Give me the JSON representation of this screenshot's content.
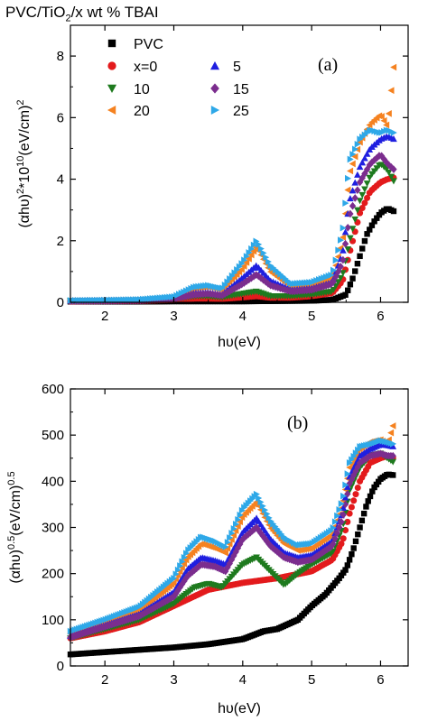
{
  "figure_title": {
    "main": "PVC/TiO",
    "sub": "2",
    "rest": "/x  wt % TBAI"
  },
  "chart_data": [
    {
      "type": "scatter",
      "panel_label": "(a)",
      "xlabel": "hυ(eV)",
      "ylabel": "(αhυ)²*10¹⁰(eV/cm)²",
      "xlim": [
        1.5,
        6.4
      ],
      "ylim": [
        0,
        9
      ],
      "xticks": [
        2,
        3,
        4,
        5,
        6
      ],
      "yticks": [
        0,
        2,
        4,
        6,
        8
      ],
      "legend_placement": "top-left",
      "series": [
        {
          "name": "PVC",
          "color": "#000000",
          "marker": "square",
          "x": [
            1.5,
            2.0,
            2.5,
            3.0,
            3.5,
            4.0,
            4.5,
            5.0,
            5.3,
            5.5,
            5.6,
            5.7,
            5.8,
            5.9,
            6.0,
            6.1,
            6.2
          ],
          "y": [
            0.02,
            0.02,
            0.02,
            0.03,
            0.03,
            0.03,
            0.04,
            0.05,
            0.08,
            0.25,
            0.8,
            1.5,
            2.2,
            2.6,
            2.9,
            3.05,
            2.95
          ]
        },
        {
          "name": "x=0",
          "color": "#e31a1c",
          "marker": "circle",
          "x": [
            1.5,
            2.0,
            2.5,
            3.0,
            3.3,
            3.5,
            3.7,
            4.0,
            4.2,
            4.4,
            4.7,
            5.0,
            5.3,
            5.45,
            5.55,
            5.7,
            5.85,
            6.0,
            6.1,
            6.2
          ],
          "y": [
            0.03,
            0.04,
            0.05,
            0.08,
            0.12,
            0.12,
            0.11,
            0.16,
            0.2,
            0.15,
            0.15,
            0.2,
            0.3,
            0.7,
            1.6,
            2.9,
            3.6,
            3.9,
            4.0,
            4.05
          ]
        },
        {
          "name": "10",
          "color": "#1e7a1e",
          "marker": "triangle-down",
          "x": [
            1.5,
            2.0,
            2.5,
            3.0,
            3.3,
            3.5,
            3.7,
            4.0,
            4.2,
            4.4,
            4.7,
            5.0,
            5.3,
            5.45,
            5.55,
            5.7,
            5.85,
            6.0,
            6.1,
            6.2
          ],
          "y": [
            0.04,
            0.05,
            0.06,
            0.1,
            0.2,
            0.2,
            0.16,
            0.28,
            0.35,
            0.2,
            0.2,
            0.25,
            0.35,
            0.9,
            2.0,
            3.3,
            4.1,
            4.5,
            4.3,
            3.9
          ]
        },
        {
          "name": "20",
          "color": "#f58220",
          "marker": "triangle-left",
          "x": [
            1.5,
            2.0,
            2.5,
            3.0,
            3.3,
            3.5,
            3.7,
            4.0,
            4.2,
            4.4,
            4.7,
            5.0,
            5.3,
            5.45,
            5.55,
            5.7,
            5.85,
            6.0,
            6.1,
            6.2
          ],
          "y": [
            0.05,
            0.06,
            0.08,
            0.15,
            0.45,
            0.5,
            0.4,
            1.1,
            1.8,
            1.0,
            0.5,
            0.55,
            0.8,
            2.0,
            4.2,
            5.2,
            5.8,
            6.1,
            5.7,
            7.85
          ]
        },
        {
          "name": "5",
          "color": "#1f1fe0",
          "marker": "triangle-up",
          "x": [
            1.5,
            2.0,
            2.5,
            3.0,
            3.3,
            3.5,
            3.7,
            4.0,
            4.2,
            4.4,
            4.7,
            5.0,
            5.3,
            5.45,
            5.55,
            5.7,
            5.85,
            6.0,
            6.1,
            6.2
          ],
          "y": [
            0.05,
            0.06,
            0.07,
            0.13,
            0.3,
            0.32,
            0.25,
            0.8,
            1.2,
            0.7,
            0.4,
            0.45,
            0.65,
            1.6,
            3.3,
            4.4,
            5.0,
            5.3,
            5.4,
            5.3
          ]
        },
        {
          "name": "15",
          "color": "#7b2d8e",
          "marker": "diamond",
          "x": [
            1.5,
            2.0,
            2.5,
            3.0,
            3.3,
            3.5,
            3.7,
            4.0,
            4.2,
            4.4,
            4.7,
            5.0,
            5.3,
            5.45,
            5.55,
            5.7,
            5.85,
            6.0,
            6.1,
            6.2
          ],
          "y": [
            0.04,
            0.05,
            0.06,
            0.12,
            0.25,
            0.28,
            0.22,
            0.6,
            0.9,
            0.55,
            0.35,
            0.4,
            0.6,
            1.3,
            2.8,
            3.9,
            4.5,
            4.8,
            4.5,
            4.3
          ]
        },
        {
          "name": "25",
          "color": "#2ea8e8",
          "marker": "triangle-right",
          "x": [
            1.5,
            2.0,
            2.5,
            3.0,
            3.3,
            3.5,
            3.7,
            4.0,
            4.2,
            4.4,
            4.7,
            5.0,
            5.3,
            5.45,
            5.55,
            5.7,
            5.85,
            6.0,
            6.1,
            6.2
          ],
          "y": [
            0.06,
            0.07,
            0.09,
            0.18,
            0.5,
            0.55,
            0.45,
            1.3,
            2.0,
            1.2,
            0.6,
            0.65,
            0.9,
            2.3,
            4.6,
            5.3,
            5.6,
            5.5,
            5.6,
            5.5
          ]
        }
      ]
    },
    {
      "type": "scatter",
      "panel_label": "(b)",
      "xlabel": "hυ(eV)",
      "ylabel": "(αhυ)⁰·⁵(eV/cm)⁰·⁵",
      "xlim": [
        1.5,
        6.4
      ],
      "ylim": [
        0,
        600
      ],
      "xticks": [
        2,
        3,
        4,
        5,
        6
      ],
      "yticks": [
        0,
        100,
        200,
        300,
        400,
        500,
        600
      ],
      "series": [
        {
          "name": "PVC",
          "color": "#000000",
          "marker": "square",
          "x": [
            1.5,
            2.0,
            2.5,
            3.0,
            3.5,
            4.0,
            4.3,
            4.5,
            4.8,
            5.0,
            5.2,
            5.4,
            5.5,
            5.6,
            5.7,
            5.8,
            5.9,
            6.0,
            6.1,
            6.2
          ],
          "y": [
            25,
            30,
            35,
            40,
            47,
            58,
            75,
            80,
            100,
            130,
            155,
            190,
            210,
            250,
            300,
            350,
            385,
            405,
            415,
            413
          ]
        },
        {
          "name": "x=0",
          "color": "#e31a1c",
          "marker": "circle",
          "x": [
            1.5,
            2.0,
            2.5,
            3.0,
            3.5,
            4.0,
            4.5,
            5.0,
            5.3,
            5.45,
            5.55,
            5.7,
            5.85,
            6.0,
            6.1,
            6.2
          ],
          "y": [
            60,
            75,
            95,
            130,
            165,
            180,
            190,
            205,
            230,
            270,
            330,
            400,
            440,
            450,
            455,
            450
          ]
        },
        {
          "name": "10",
          "color": "#1e7a1e",
          "marker": "triangle-down",
          "x": [
            1.5,
            2.0,
            2.5,
            3.0,
            3.3,
            3.5,
            3.7,
            4.0,
            4.2,
            4.4,
            4.6,
            4.8,
            5.0,
            5.3,
            5.45,
            5.55,
            5.7,
            5.85,
            6.0,
            6.1,
            6.2
          ],
          "y": [
            60,
            80,
            100,
            135,
            170,
            178,
            170,
            220,
            235,
            205,
            175,
            200,
            220,
            245,
            300,
            380,
            430,
            455,
            460,
            450,
            440
          ]
        },
        {
          "name": "20",
          "color": "#f58220",
          "marker": "triangle-left",
          "x": [
            1.5,
            2.0,
            2.5,
            3.0,
            3.2,
            3.4,
            3.6,
            3.75,
            4.0,
            4.2,
            4.4,
            4.6,
            4.8,
            5.0,
            5.3,
            5.45,
            5.55,
            5.7,
            5.85,
            6.0,
            6.1,
            6.2
          ],
          "y": [
            70,
            95,
            120,
            180,
            235,
            265,
            255,
            245,
            325,
            355,
            300,
            265,
            250,
            255,
            285,
            350,
            430,
            470,
            485,
            490,
            480,
            530
          ]
        },
        {
          "name": "5",
          "color": "#1f1fe0",
          "marker": "triangle-up",
          "x": [
            1.5,
            2.0,
            2.5,
            3.0,
            3.2,
            3.4,
            3.6,
            3.75,
            4.0,
            4.2,
            4.4,
            4.6,
            4.8,
            5.0,
            5.3,
            5.45,
            5.55,
            5.7,
            5.85,
            6.0,
            6.1,
            6.2
          ],
          "y": [
            65,
            88,
            112,
            160,
            210,
            235,
            228,
            220,
            290,
            320,
            275,
            245,
            235,
            240,
            270,
            335,
            410,
            455,
            470,
            480,
            478,
            475
          ]
        },
        {
          "name": "15",
          "color": "#7b2d8e",
          "marker": "diamond",
          "x": [
            1.5,
            2.0,
            2.5,
            3.0,
            3.2,
            3.4,
            3.6,
            3.75,
            4.0,
            4.2,
            4.4,
            4.6,
            4.8,
            5.0,
            5.3,
            5.45,
            5.55,
            5.7,
            5.85,
            6.0,
            6.1,
            6.2
          ],
          "y": [
            62,
            85,
            108,
            150,
            195,
            220,
            215,
            205,
            275,
            300,
            260,
            235,
            225,
            230,
            260,
            320,
            395,
            440,
            455,
            460,
            455,
            455
          ]
        },
        {
          "name": "25",
          "color": "#2ea8e8",
          "marker": "triangle-right",
          "x": [
            1.5,
            2.0,
            2.5,
            3.0,
            3.2,
            3.4,
            3.6,
            3.75,
            4.0,
            4.2,
            4.4,
            4.6,
            4.8,
            5.0,
            5.3,
            5.45,
            5.55,
            5.7,
            5.85,
            6.0,
            6.1,
            6.2
          ],
          "y": [
            75,
            100,
            128,
            190,
            250,
            280,
            270,
            258,
            340,
            372,
            315,
            278,
            262,
            265,
            295,
            360,
            440,
            475,
            480,
            488,
            485,
            480
          ]
        }
      ]
    }
  ]
}
